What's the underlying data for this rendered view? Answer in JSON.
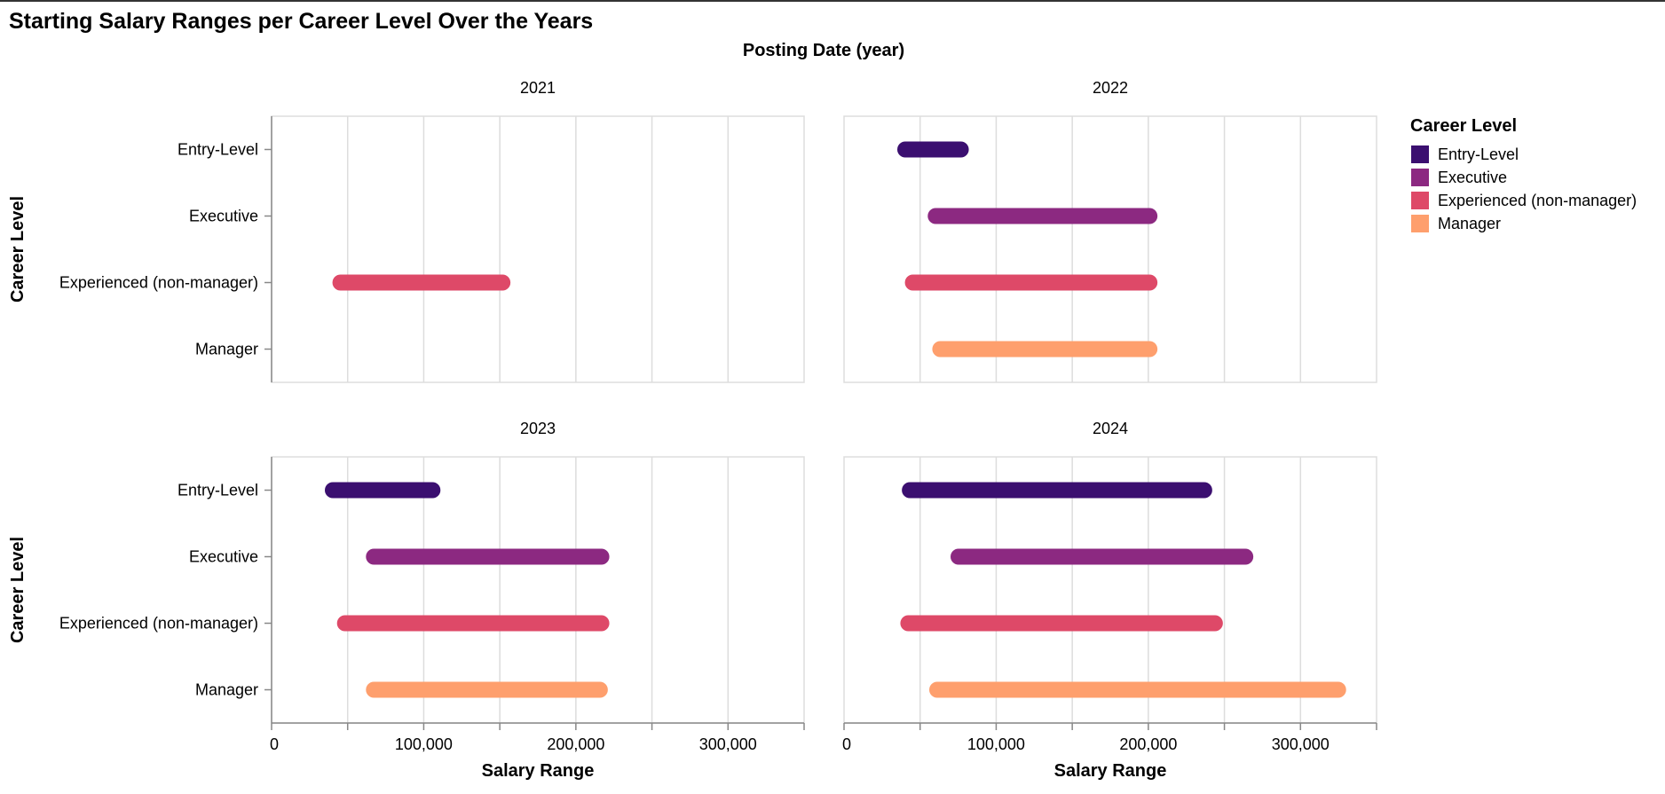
{
  "chart_data": {
    "type": "bar",
    "subtype": "range-bar-faceted",
    "title": "Starting Salary Ranges per Career Level Over the Years",
    "column_title": "Posting Date (year)",
    "xlabel": "Salary Range",
    "ylabel": "Career Level",
    "xlim": [
      0,
      350000
    ],
    "x_ticks": [
      0,
      50000,
      100000,
      150000,
      200000,
      250000,
      300000,
      350000
    ],
    "x_tick_labels": [
      "0",
      "",
      "100,000",
      "",
      "200,000",
      "",
      "300,000",
      ""
    ],
    "categories": [
      "Entry-Level",
      "Executive",
      "Experienced (non-manager)",
      "Manager"
    ],
    "grid": true,
    "legend": {
      "title": "Career Level",
      "placement": "right",
      "entries": [
        "Entry-Level",
        "Executive",
        "Experienced (non-manager)",
        "Manager"
      ]
    },
    "colors": {
      "Entry-Level": "#3b0f70",
      "Executive": "#8c2981",
      "Experienced (non-manager)": "#de4968",
      "Manager": "#fe9f6d"
    },
    "facets": [
      {
        "year": "2021",
        "ranges": [
          {
            "category": "Experienced (non-manager)",
            "min": 40000,
            "max": 157000
          }
        ]
      },
      {
        "year": "2022",
        "ranges": [
          {
            "category": "Entry-Level",
            "min": 35000,
            "max": 82000
          },
          {
            "category": "Executive",
            "min": 55000,
            "max": 206000
          },
          {
            "category": "Experienced (non-manager)",
            "min": 40000,
            "max": 206000
          },
          {
            "category": "Manager",
            "min": 58000,
            "max": 206000
          }
        ]
      },
      {
        "year": "2023",
        "ranges": [
          {
            "category": "Entry-Level",
            "min": 35000,
            "max": 111000
          },
          {
            "category": "Executive",
            "min": 62000,
            "max": 222000
          },
          {
            "category": "Experienced (non-manager)",
            "min": 43000,
            "max": 222000
          },
          {
            "category": "Manager",
            "min": 62000,
            "max": 221000
          }
        ]
      },
      {
        "year": "2024",
        "ranges": [
          {
            "category": "Entry-Level",
            "min": 38000,
            "max": 242000
          },
          {
            "category": "Executive",
            "min": 70000,
            "max": 269000
          },
          {
            "category": "Experienced (non-manager)",
            "min": 37000,
            "max": 249000
          },
          {
            "category": "Manager",
            "min": 56000,
            "max": 330000
          }
        ]
      }
    ]
  }
}
